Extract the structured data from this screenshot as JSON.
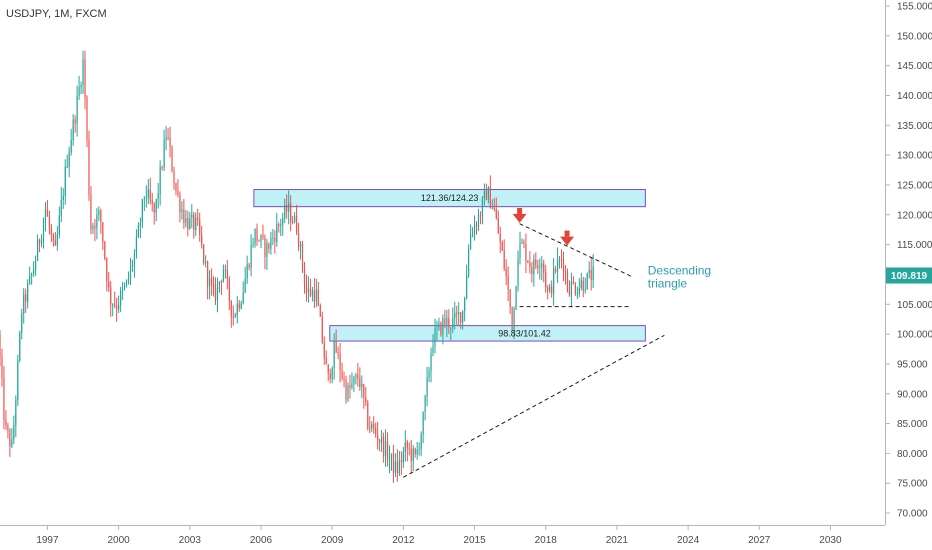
{
  "chart_data": {
    "type": "candlestick",
    "title": "USDJPY, 1M, FXCM",
    "y_axis": {
      "range": [
        68,
        156
      ],
      "ticks": [
        155,
        150,
        145,
        140,
        135,
        130,
        125,
        120,
        115,
        110,
        105,
        100,
        95,
        90,
        85,
        80,
        75,
        70
      ],
      "tick_labels": [
        "155.000",
        "150.000",
        "145.000",
        "140.000",
        "135.000",
        "130.000",
        "125.000",
        "120.000",
        "115.000",
        "110.000",
        "105.000",
        "100.000",
        "95.000",
        "90.000",
        "85.000",
        "80.000",
        "75.000",
        "70.000"
      ],
      "position": "right"
    },
    "x_axis": {
      "range": [
        1995.0,
        2032.3
      ],
      "ticks": [
        1997,
        2000,
        2003,
        2006,
        2009,
        2012,
        2015,
        2018,
        2021,
        2024,
        2027,
        2030
      ],
      "tick_labels": [
        "1997",
        "2000",
        "2003",
        "2006",
        "2009",
        "2012",
        "2015",
        "2018",
        "2021",
        "2024",
        "2027",
        "2030"
      ]
    },
    "grid": false,
    "last_price": {
      "value": 109.819,
      "label": "109.819",
      "color": "#26a69a"
    },
    "colors": {
      "up": "#26a69a",
      "down": "#ef5350",
      "zone_fill": "#bff1f7",
      "zone_border": "#7c4dbd",
      "annotation": "#2a9fb0",
      "arrow": "#e0453a"
    },
    "path": [
      [
        1995.0,
        100
      ],
      [
        1995.3,
        84
      ],
      [
        1995.6,
        81
      ],
      [
        1996.0,
        104
      ],
      [
        1996.5,
        111
      ],
      [
        1997.0,
        121
      ],
      [
        1997.4,
        113
      ],
      [
        1997.9,
        129
      ],
      [
        1998.3,
        138
      ],
      [
        1998.6,
        146
      ],
      [
        1998.9,
        118
      ],
      [
        1999.3,
        120
      ],
      [
        1999.7,
        106
      ],
      [
        2000.0,
        105
      ],
      [
        2000.4,
        108
      ],
      [
        2000.8,
        114
      ],
      [
        2001.2,
        124
      ],
      [
        2001.6,
        120
      ],
      [
        2002.1,
        134
      ],
      [
        2002.5,
        124
      ],
      [
        2002.9,
        119
      ],
      [
        2003.4,
        118
      ],
      [
        2003.8,
        110
      ],
      [
        2004.1,
        106
      ],
      [
        2004.5,
        111
      ],
      [
        2004.9,
        103
      ],
      [
        2005.3,
        107
      ],
      [
        2005.8,
        117
      ],
      [
        2006.3,
        114
      ],
      [
        2006.8,
        118
      ],
      [
        2007.2,
        121
      ],
      [
        2007.6,
        118
      ],
      [
        2008.0,
        107
      ],
      [
        2008.4,
        107
      ],
      [
        2008.9,
        92
      ],
      [
        2009.2,
        98
      ],
      [
        2009.7,
        90
      ],
      [
        2010.2,
        93
      ],
      [
        2010.6,
        85
      ],
      [
        2011.0,
        83
      ],
      [
        2011.4,
        80
      ],
      [
        2011.8,
        77
      ],
      [
        2012.2,
        81
      ],
      [
        2012.6,
        79
      ],
      [
        2012.9,
        85
      ],
      [
        2013.3,
        99
      ],
      [
        2013.8,
        102
      ],
      [
        2014.2,
        102
      ],
      [
        2014.6,
        104
      ],
      [
        2014.9,
        117
      ],
      [
        2015.3,
        120
      ],
      [
        2015.6,
        124
      ],
      [
        2015.9,
        121
      ],
      [
        2016.4,
        110
      ],
      [
        2016.7,
        101
      ],
      [
        2016.9,
        114
      ],
      [
        2017.1,
        115
      ],
      [
        2017.5,
        111
      ],
      [
        2017.9,
        113
      ],
      [
        2018.2,
        106
      ],
      [
        2018.5,
        111
      ],
      [
        2018.8,
        113
      ],
      [
        2019.0,
        108
      ],
      [
        2019.4,
        108
      ],
      [
        2019.8,
        109
      ],
      [
        2020.0,
        109.8
      ]
    ],
    "annotations": {
      "resistance_zone": {
        "low": 121.36,
        "high": 124.23,
        "x_start": 2005.7,
        "x_end": 2022.2,
        "label": "121.36/124.23"
      },
      "support_zone": {
        "low": 98.83,
        "high": 101.42,
        "x_start": 2008.9,
        "x_end": 2022.2,
        "label": "98.83/101.42"
      },
      "pattern_label_line1": "Descending",
      "pattern_label_line2": "triangle",
      "triangle_top_line": {
        "from": [
          2016.9,
          118.5
        ],
        "to": [
          2021.7,
          109.5
        ]
      },
      "triangle_base_line": {
        "from": [
          2016.9,
          104.6
        ],
        "to": [
          2021.6,
          104.6
        ]
      },
      "rising_trendline": {
        "from": [
          2012.0,
          76.0
        ],
        "to": [
          2023.0,
          99.8
        ]
      },
      "arrow_markers": [
        {
          "x": 2016.9,
          "y": 118.8
        },
        {
          "x": 2018.9,
          "y": 115.0
        }
      ]
    }
  }
}
